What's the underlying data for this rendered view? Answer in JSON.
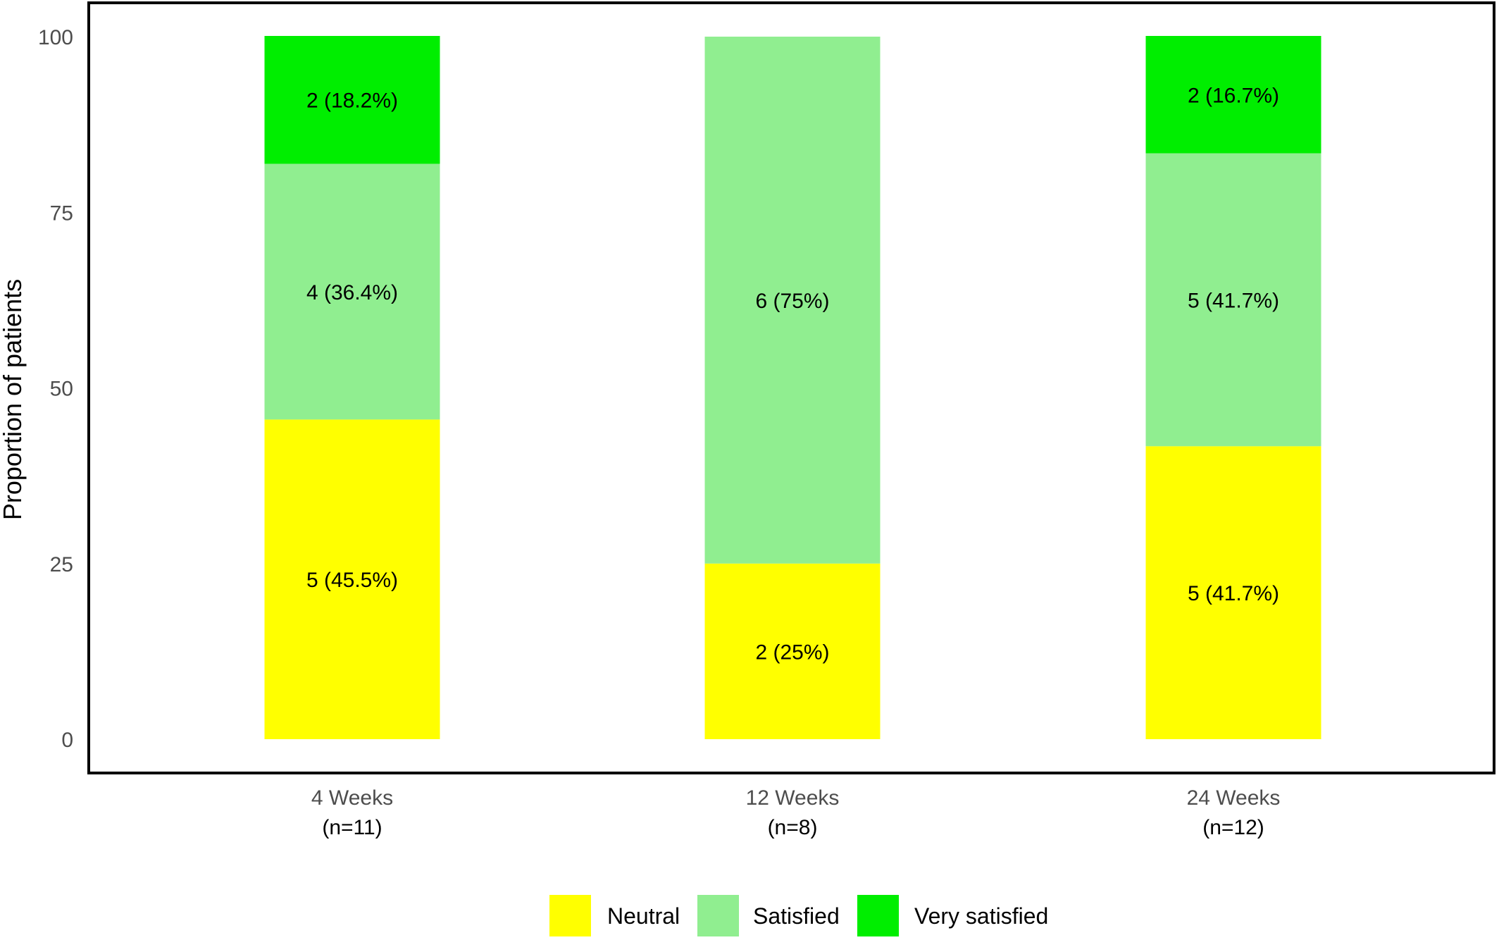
{
  "chart_data": {
    "type": "bar",
    "stacked": true,
    "ylabel": "Proportion of patients",
    "ylim": [
      0,
      100
    ],
    "yticks": [
      "0",
      "25",
      "50",
      "75",
      "100"
    ],
    "categories": [
      "4 Weeks",
      "12 Weeks",
      "24 Weeks"
    ],
    "category_n": [
      "(n=11)",
      "(n=8)",
      "(n=12)"
    ],
    "series": [
      {
        "name": "Neutral",
        "color": "#ffff00",
        "values": [
          45.5,
          25,
          41.7
        ],
        "labels": [
          "5 (45.5%)",
          "2 (25%)",
          "5 (41.7%)"
        ]
      },
      {
        "name": "Satisfied",
        "color": "#90ee90",
        "values": [
          36.4,
          75,
          41.7
        ],
        "labels": [
          "4 (36.4%)",
          "6 (75%)",
          "5 (41.7%)"
        ]
      },
      {
        "name": "Very satisfied",
        "color": "#00ee00",
        "values": [
          18.2,
          0,
          16.7
        ],
        "labels": [
          "2 (18.2%)",
          "",
          "2 (16.7%)"
        ]
      }
    ],
    "legend_position": "bottom",
    "grid": false
  }
}
